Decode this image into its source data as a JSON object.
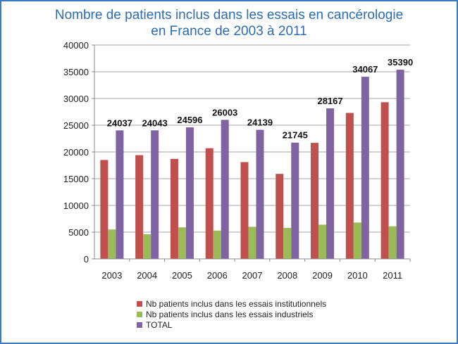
{
  "chart_data": {
    "type": "bar",
    "title": "Nombre de patients inclus dans les essais en cancérologie en France de 2003 à 2011",
    "title_lines": [
      "Nombre de patients inclus dans les essais en cancérologie",
      "en France de 2003 à 2011"
    ],
    "categories": [
      "2003",
      "2004",
      "2005",
      "2006",
      "2007",
      "2008",
      "2009",
      "2010",
      "2011"
    ],
    "series": [
      {
        "name": "Nb patients inclus dans les essais institutionnels",
        "color": "#c0504d",
        "values": [
          18500,
          19400,
          18700,
          20700,
          18100,
          15900,
          21700,
          27300,
          29300
        ]
      },
      {
        "name": "Nb patients inclus dans les essais industriels",
        "color": "#9bbb59",
        "values": [
          5500,
          4600,
          5900,
          5300,
          6000,
          5800,
          6400,
          6800,
          6100
        ]
      },
      {
        "name": "TOTAL",
        "color": "#8064a2",
        "values": [
          24037,
          24043,
          24596,
          26003,
          24139,
          21745,
          28167,
          34067,
          35390
        ],
        "data_labels": [
          "24037",
          "24043",
          "24596",
          "26003",
          "24139",
          "21745",
          "28167",
          "34067",
          "35390"
        ]
      }
    ],
    "y_ticks": [
      "0",
      "5000",
      "10000",
      "15000",
      "20000",
      "25000",
      "30000",
      "35000",
      "40000"
    ],
    "ylim": [
      0,
      40000
    ],
    "xlabel": "",
    "ylabel": "",
    "grid": true,
    "legend": "bottom"
  }
}
